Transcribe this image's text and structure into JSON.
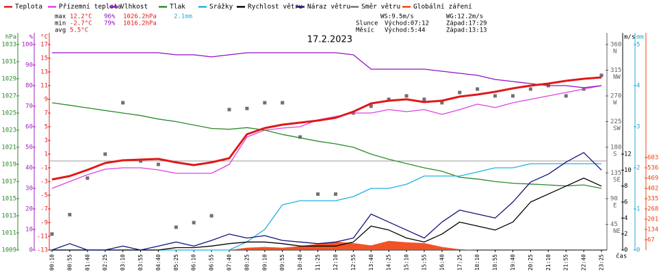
{
  "chart_data": {
    "type": "line",
    "title": "17.2.2023",
    "x_label": "čas",
    "categories": [
      "00:10",
      "00:55",
      "01:40",
      "02:25",
      "03:10",
      "03:55",
      "04:40",
      "05:25",
      "06:10",
      "06:55",
      "07:40",
      "08:25",
      "09:10",
      "09:55",
      "10:40",
      "11:25",
      "12:10",
      "12:55",
      "13:40",
      "14:25",
      "15:10",
      "15:55",
      "16:40",
      "17:25",
      "18:10",
      "18:55",
      "19:40",
      "20:25",
      "21:10",
      "21:55",
      "22:40",
      "23:25"
    ],
    "axes": [
      {
        "id": "hpa",
        "unit": "hPa",
        "color": "#2a8a2a",
        "lim": [
          1009,
          1033
        ],
        "ticks": [
          1009,
          1011,
          1013,
          1015,
          1017,
          1019,
          1021,
          1023,
          1025,
          1027,
          1029,
          1031,
          1033
        ]
      },
      {
        "id": "pct",
        "unit": "%",
        "color": "#a020c0",
        "lim": [
          0,
          100
        ],
        "ticks": [
          0,
          10,
          20,
          30,
          40,
          50,
          60,
          70,
          80,
          90,
          100
        ]
      },
      {
        "id": "temp",
        "unit": "°C",
        "color": "#e02020",
        "lim": [
          -13,
          17
        ],
        "ticks": [
          -13,
          -11,
          -9,
          -7,
          -5,
          -3,
          -1,
          1,
          3,
          5,
          7,
          9,
          11,
          13,
          15,
          17
        ]
      },
      {
        "id": "dir",
        "unit": "",
        "color": "#606060",
        "lim": [
          0,
          360
        ],
        "ticks": [
          45,
          90,
          135,
          180,
          225,
          270,
          315,
          360
        ],
        "tick_notes": [
          "NE",
          "E",
          "SE",
          "S",
          "SW",
          "W",
          "NW",
          "N"
        ]
      },
      {
        "id": "ms",
        "unit": "m/s",
        "color": "#000000",
        "lim": [
          0,
          12
        ],
        "ticks": [
          0,
          2,
          4,
          6,
          8,
          10,
          12
        ]
      },
      {
        "id": "mm",
        "unit": "mm",
        "color": "#20a8d8",
        "lim": [
          0,
          5
        ],
        "ticks": [
          0,
          1,
          2,
          3,
          4,
          5
        ]
      },
      {
        "id": "wm2",
        "unit": "",
        "color": "#f04010",
        "lim": [
          0,
          603
        ],
        "ticks": [
          67,
          134,
          201,
          268,
          335,
          402,
          469,
          536,
          603
        ]
      }
    ],
    "series": [
      {
        "name": "Teplota",
        "color": "#e01818",
        "axis": "temp",
        "style": "thick",
        "values": [
          -2.7,
          -2.2,
          -1.3,
          -0.3,
          0.1,
          0.2,
          0.3,
          -0.2,
          -0.6,
          -0.2,
          0.4,
          3.9,
          4.8,
          5.3,
          5.6,
          5.9,
          6.3,
          7.2,
          8.4,
          8.8,
          9.0,
          8.6,
          8.8,
          9.4,
          9.7,
          10.1,
          10.6,
          11.0,
          11.3,
          11.7,
          12.0,
          12.2
        ]
      },
      {
        "name": "Přízemní teplota",
        "color": "#e040e0",
        "axis": "temp",
        "style": "line",
        "values": [
          -4,
          -3,
          -2,
          -1.2,
          -1,
          -1,
          -1.3,
          -1.8,
          -1.8,
          -1.8,
          -0.5,
          3.5,
          4.5,
          4.8,
          5,
          6,
          6.5,
          7,
          7,
          7.5,
          7.2,
          7.5,
          6.8,
          7.5,
          8.3,
          7.8,
          8.5,
          9,
          9.5,
          10,
          10.5,
          11
        ]
      },
      {
        "name": "Vlhkost",
        "color": "#9010c0",
        "axis": "pct",
        "style": "line",
        "values": [
          96,
          96,
          96,
          96,
          96,
          96,
          96,
          95,
          95,
          94,
          95,
          96,
          96,
          96,
          96,
          96,
          96,
          95,
          88,
          88,
          88,
          88,
          87,
          86,
          85,
          83,
          82,
          81,
          80,
          80,
          79,
          80
        ]
      },
      {
        "name": "Tlak",
        "color": "#2a8a2a",
        "axis": "hpa",
        "style": "line",
        "values": [
          1026.2,
          1025.9,
          1025.6,
          1025.3,
          1025.0,
          1024.7,
          1024.3,
          1024.0,
          1023.6,
          1023.2,
          1023.1,
          1023.3,
          1023.0,
          1022.5,
          1022.1,
          1021.7,
          1021.4,
          1021.0,
          1020.2,
          1019.6,
          1019.1,
          1018.6,
          1018.2,
          1017.5,
          1017.3,
          1017.0,
          1016.8,
          1016.7,
          1016.6,
          1016.5,
          1016.6,
          1016.2
        ]
      },
      {
        "name": "Srážky",
        "color": "#20b0e0",
        "axis": "mm",
        "style": "line",
        "values": [
          0,
          0,
          0,
          0,
          0,
          0,
          0,
          0,
          0,
          0,
          0,
          0.2,
          0.5,
          1.1,
          1.2,
          1.2,
          1.2,
          1.3,
          1.5,
          1.5,
          1.6,
          1.8,
          1.8,
          1.8,
          1.9,
          2.0,
          2.0,
          2.1,
          2.1,
          2.1,
          2.1,
          2.1
        ]
      },
      {
        "name": "Rychlost větru",
        "color": "#000000",
        "axis": "ms",
        "style": "line",
        "values": [
          0,
          0,
          0,
          0,
          0,
          0,
          0,
          0.3,
          0.3,
          0.5,
          0.8,
          1,
          1,
          0.8,
          0.5,
          0.5,
          0.5,
          1,
          3,
          2.5,
          1.5,
          1,
          2,
          3.5,
          3,
          2.5,
          3.5,
          6,
          7,
          8,
          9,
          8
        ]
      },
      {
        "name": "Náraz větru",
        "color": "#10107a",
        "axis": "ms",
        "style": "line",
        "values": [
          0,
          0.8,
          0,
          0,
          0.5,
          0,
          0.5,
          1,
          0.5,
          1.2,
          2,
          1.5,
          1.8,
          1.2,
          1,
          0.8,
          1,
          1.5,
          4.5,
          3.5,
          2.5,
          1.5,
          3.5,
          5,
          4.5,
          4,
          6,
          8.5,
          9.5,
          11,
          12.2,
          10
        ]
      },
      {
        "name": "Směr větru",
        "color": "#707070",
        "axis": "dir",
        "style": "points",
        "values": [
          28,
          62,
          126,
          168,
          258,
          156,
          150,
          40,
          48,
          60,
          246,
          248,
          258,
          258,
          198,
          98,
          98,
          240,
          252,
          264,
          270,
          264,
          258,
          276,
          282,
          270,
          270,
          282,
          288,
          270,
          282,
          306
        ]
      },
      {
        "name": "Globální záření",
        "color": "#f04010",
        "axis": "wm2",
        "style": "area",
        "values": [
          0,
          0,
          0,
          0,
          0,
          0,
          0,
          0,
          0,
          0,
          0,
          15,
          20,
          15,
          25,
          40,
          55,
          45,
          30,
          60,
          50,
          45,
          20,
          5,
          0,
          0,
          0,
          0,
          0,
          0,
          0,
          0
        ]
      }
    ],
    "stats": {
      "labels": [
        "max",
        "min",
        "avg"
      ],
      "temperature": [
        "12.2°C",
        "-2.7°C",
        "5.5°C"
      ],
      "humidity": [
        "96%",
        "79%"
      ],
      "pressure": [
        "1026.2hPa",
        "1016.2hPa"
      ],
      "rain": [
        "2.1mm"
      ],
      "wind": [
        "WS:9.5m/s",
        "WG:12.2m/s"
      ],
      "sun": [
        "Slunce",
        "Východ:07:12",
        "Západ:17:29"
      ],
      "moon": [
        "Měsíc",
        "Východ:5:44",
        "Západ:13:13"
      ]
    }
  }
}
